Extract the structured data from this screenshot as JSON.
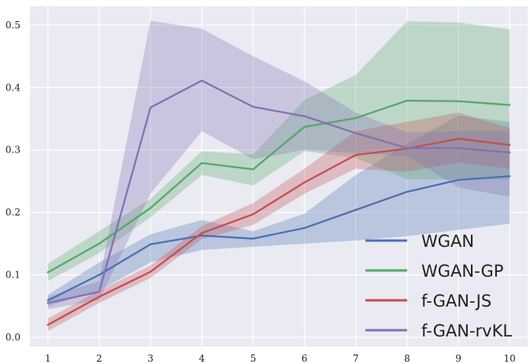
{
  "chart_data": {
    "type": "line",
    "title": "",
    "xlabel": "",
    "ylabel": "",
    "x": [
      1,
      2,
      3,
      4,
      5,
      6,
      7,
      8,
      9,
      10
    ],
    "xlim": [
      0.65,
      10.35
    ],
    "ylim": [
      -0.015,
      0.53
    ],
    "xticks": [
      "1",
      "2",
      "3",
      "4",
      "5",
      "6",
      "7",
      "8",
      "9",
      "10"
    ],
    "yticks": [
      {
        "value": 0.0,
        "label": "0.0"
      },
      {
        "value": 0.1,
        "label": "0.1"
      },
      {
        "value": 0.2,
        "label": "0.2"
      },
      {
        "value": 0.3,
        "label": "0.3"
      },
      {
        "value": 0.4,
        "label": "0.4"
      },
      {
        "value": 0.5,
        "label": "0.5"
      }
    ],
    "grid": true,
    "legend_position": "lower-right",
    "series": [
      {
        "name": "WGAN",
        "color": "#4c72b0",
        "values": [
          0.059,
          0.1,
          0.149,
          0.163,
          0.158,
          0.175,
          0.204,
          0.233,
          0.252,
          0.258
        ],
        "lower": [
          0.05,
          0.075,
          0.12,
          0.14,
          0.145,
          0.15,
          0.155,
          0.162,
          0.172,
          0.182
        ],
        "upper": [
          0.068,
          0.12,
          0.165,
          0.188,
          0.17,
          0.198,
          0.26,
          0.31,
          0.355,
          0.345
        ]
      },
      {
        "name": "WGAN-GP",
        "color": "#55a868",
        "values": [
          0.104,
          0.15,
          0.207,
          0.279,
          0.269,
          0.337,
          0.351,
          0.379,
          0.378,
          0.372
        ],
        "lower": [
          0.09,
          0.135,
          0.192,
          0.26,
          0.243,
          0.298,
          0.287,
          0.253,
          0.253,
          0.253
        ],
        "upper": [
          0.118,
          0.17,
          0.222,
          0.298,
          0.293,
          0.38,
          0.42,
          0.506,
          0.504,
          0.493
        ]
      },
      {
        "name": "f-GAN-JS",
        "color": "#c44e52",
        "values": [
          0.02,
          0.065,
          0.105,
          0.167,
          0.197,
          0.248,
          0.292,
          0.302,
          0.318,
          0.308
        ],
        "lower": [
          0.01,
          0.055,
          0.095,
          0.157,
          0.18,
          0.23,
          0.27,
          0.265,
          0.28,
          0.27
        ],
        "upper": [
          0.03,
          0.075,
          0.115,
          0.178,
          0.215,
          0.27,
          0.33,
          0.345,
          0.36,
          0.335
        ]
      },
      {
        "name": "f-GAN-rvKL",
        "color": "#8172b2",
        "values": [
          0.055,
          0.073,
          0.368,
          0.411,
          0.369,
          0.354,
          0.327,
          0.303,
          0.303,
          0.296
        ],
        "lower": [
          0.045,
          0.06,
          0.23,
          0.33,
          0.285,
          0.3,
          0.295,
          0.29,
          0.24,
          0.225
        ],
        "upper": [
          0.065,
          0.09,
          0.507,
          0.494,
          0.45,
          0.41,
          0.36,
          0.328,
          0.33,
          0.33
        ]
      }
    ]
  }
}
